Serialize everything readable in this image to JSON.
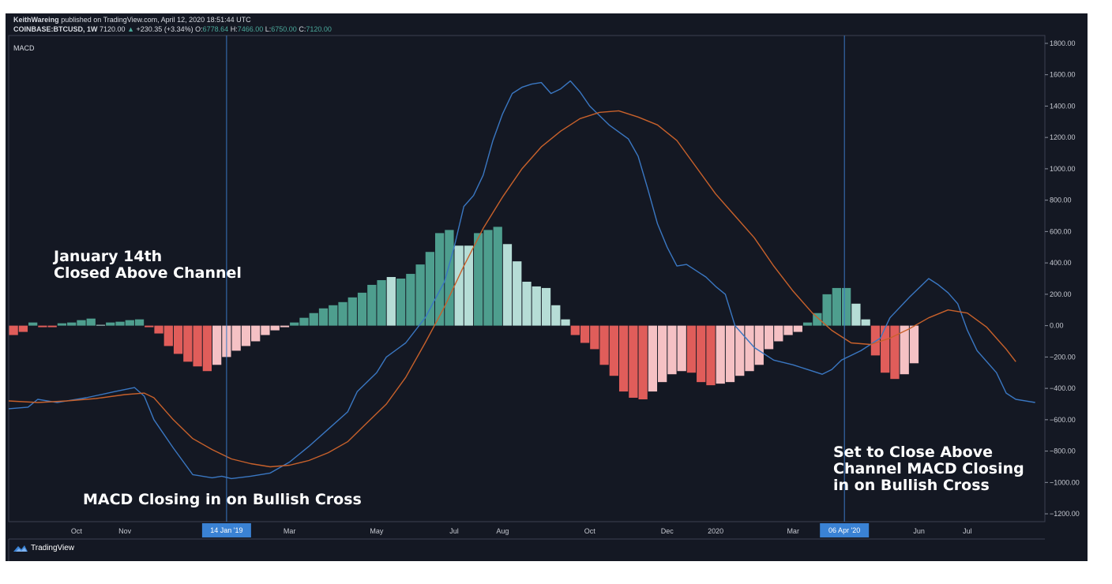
{
  "header": {
    "author": "KeithWareing",
    "published": "published on TradingView.com, April 12, 2020 18:51:44 UTC",
    "symbol": "COINBASE:BTCUSD, 1W",
    "last": "7120.00",
    "change_arrow": "▲",
    "change": "+230.35 (+3.34%)",
    "o_label": "O:",
    "o": "6778.64",
    "h_label": "H:",
    "h": "7466.00",
    "l_label": "L:",
    "l": "6750.00",
    "c_label": "C:",
    "c": "7120.00"
  },
  "indicator_label": "MACD",
  "annotations": {
    "jan14_line1": "January 14th",
    "jan14_line2": "Closed Above Channel",
    "closing_in": "MACD Closing in on Bullish Cross",
    "set_line1": "Set to Close Above",
    "set_line2": "Channel MACD Closing",
    "set_line3": "in on Bullish Cross"
  },
  "branding": {
    "name": "TradingView",
    "icon": "tradingview-logo-icon"
  },
  "colors": {
    "background": "#141823",
    "macd_line": "#3a77c2",
    "signal_line": "#c8612b",
    "hist_up_strong": "#4e9e8e",
    "hist_up_weak": "#b6ddd6",
    "hist_down_strong": "#e05d5a",
    "hist_down_weak": "#f5c1c4",
    "marker": "#3a77c2",
    "marker_label_bg": "#3a82d4"
  },
  "chart_data": {
    "type": "bar",
    "ylim": [
      -1250,
      1850
    ],
    "y_ticks": [
      1800,
      1600,
      1400,
      1200,
      1000,
      800,
      600,
      400,
      200,
      0,
      -200,
      -400,
      -600,
      -800,
      -1000,
      -1200
    ],
    "y_tick_labels": [
      "1800.00",
      "1600.00",
      "1400.00",
      "1200.00",
      "1000.00",
      "800.00",
      "600.00",
      "400.00",
      "200.00",
      "0.00",
      "−200.00",
      "−400.00",
      "−600.00",
      "−800.00",
      "−1000.00",
      "−1200.00"
    ],
    "x_range": [
      0,
      107
    ],
    "x_ticks": [
      {
        "label": "Oct",
        "x": 7
      },
      {
        "label": "Nov",
        "x": 12
      },
      {
        "label": "Mar",
        "x": 29
      },
      {
        "label": "May",
        "x": 38
      },
      {
        "label": "Jul",
        "x": 46
      },
      {
        "label": "Aug",
        "x": 51
      },
      {
        "label": "Oct",
        "x": 60
      },
      {
        "label": "Dec",
        "x": 68
      },
      {
        "label": "2020",
        "x": 73
      },
      {
        "label": "Mar",
        "x": 81
      },
      {
        "label": "Jun",
        "x": 94
      },
      {
        "label": "Jul",
        "x": 99
      }
    ],
    "markers": [
      {
        "label": "14 Jan '19",
        "x": 22.5
      },
      {
        "label": "06 Apr '20",
        "x": 86.3
      }
    ],
    "histogram": [
      -60,
      -40,
      20,
      -10,
      -10,
      15,
      20,
      35,
      45,
      5,
      20,
      25,
      35,
      40,
      -10,
      -50,
      -130,
      -180,
      -230,
      -260,
      -290,
      -250,
      -200,
      -160,
      -130,
      -100,
      -60,
      -30,
      -10,
      20,
      50,
      80,
      110,
      130,
      150,
      180,
      210,
      260,
      290,
      310,
      300,
      330,
      390,
      470,
      590,
      610,
      510,
      510,
      590,
      610,
      630,
      520,
      410,
      280,
      250,
      240,
      130,
      40,
      -60,
      -110,
      -150,
      -250,
      -320,
      -420,
      -460,
      -470,
      -420,
      -360,
      -310,
      -290,
      -300,
      -360,
      -380,
      -370,
      -360,
      -320,
      -290,
      -250,
      -150,
      -100,
      -60,
      -40,
      20,
      80,
      200,
      240,
      240,
      140,
      40,
      -190,
      -300,
      -340,
      -310,
      -240
    ],
    "hist_style": [
      "ds",
      "ds",
      "us",
      "ds",
      "ds",
      "us",
      "us",
      "us",
      "us",
      "uw",
      "us",
      "us",
      "us",
      "us",
      "ds",
      "ds",
      "ds",
      "ds",
      "ds",
      "ds",
      "ds",
      "dw",
      "dw",
      "dw",
      "dw",
      "dw",
      "dw",
      "dw",
      "dw",
      "us",
      "us",
      "us",
      "us",
      "us",
      "us",
      "us",
      "us",
      "us",
      "us",
      "uw",
      "us",
      "us",
      "us",
      "us",
      "us",
      "us",
      "uw",
      "uw",
      "us",
      "us",
      "us",
      "uw",
      "uw",
      "uw",
      "uw",
      "uw",
      "uw",
      "uw",
      "ds",
      "ds",
      "ds",
      "ds",
      "ds",
      "ds",
      "ds",
      "ds",
      "dw",
      "dw",
      "dw",
      "dw",
      "ds",
      "ds",
      "ds",
      "dw",
      "dw",
      "dw",
      "dw",
      "dw",
      "dw",
      "dw",
      "dw",
      "dw",
      "us",
      "us",
      "us",
      "us",
      "us",
      "uw",
      "uw",
      "ds",
      "ds",
      "ds",
      "dw",
      "dw"
    ],
    "series": [
      {
        "values": [
          [
            0,
            -530
          ],
          [
            2,
            -520
          ],
          [
            3,
            -470
          ],
          [
            5,
            -490
          ],
          [
            8,
            -460
          ],
          [
            11,
            -420
          ],
          [
            13,
            -395
          ],
          [
            14,
            -450
          ],
          [
            15,
            -600
          ],
          [
            17,
            -780
          ],
          [
            19,
            -950
          ],
          [
            21,
            -970
          ],
          [
            22,
            -960
          ],
          [
            23,
            -975
          ],
          [
            25,
            -960
          ],
          [
            27,
            -940
          ],
          [
            29,
            -870
          ],
          [
            31,
            -770
          ],
          [
            33,
            -660
          ],
          [
            35,
            -550
          ],
          [
            36,
            -420
          ],
          [
            38,
            -300
          ],
          [
            39,
            -200
          ],
          [
            41,
            -110
          ],
          [
            43,
            50
          ],
          [
            45,
            280
          ],
          [
            46,
            500
          ],
          [
            47,
            760
          ],
          [
            48,
            830
          ],
          [
            49,
            960
          ],
          [
            50,
            1180
          ],
          [
            51,
            1350
          ],
          [
            52,
            1480
          ],
          [
            53,
            1520
          ],
          [
            54,
            1540
          ],
          [
            55,
            1550
          ],
          [
            56,
            1480
          ],
          [
            57,
            1510
          ],
          [
            58,
            1560
          ],
          [
            59,
            1490
          ],
          [
            60,
            1400
          ],
          [
            62,
            1280
          ],
          [
            64,
            1190
          ],
          [
            65,
            1080
          ],
          [
            66,
            870
          ],
          [
            67,
            650
          ],
          [
            68,
            500
          ],
          [
            69,
            380
          ],
          [
            70,
            390
          ],
          [
            71,
            350
          ],
          [
            72,
            310
          ],
          [
            73,
            250
          ],
          [
            74,
            200
          ],
          [
            75,
            0
          ],
          [
            77,
            -140
          ],
          [
            79,
            -220
          ],
          [
            81,
            -250
          ],
          [
            83,
            -290
          ],
          [
            84,
            -310
          ],
          [
            85,
            -280
          ],
          [
            86,
            -220
          ],
          [
            88,
            -160
          ],
          [
            90,
            -80
          ],
          [
            91,
            50
          ],
          [
            93,
            180
          ],
          [
            95,
            300
          ],
          [
            96,
            260
          ],
          [
            97,
            210
          ],
          [
            98,
            140
          ],
          [
            99,
            -30
          ],
          [
            100,
            -160
          ],
          [
            102,
            -300
          ],
          [
            103,
            -430
          ],
          [
            104,
            -470
          ],
          [
            106,
            -490
          ]
        ]
      },
      {
        "values": [
          [
            0,
            -480
          ],
          [
            3,
            -490
          ],
          [
            6,
            -480
          ],
          [
            9,
            -465
          ],
          [
            12,
            -440
          ],
          [
            14,
            -430
          ],
          [
            15,
            -460
          ],
          [
            17,
            -600
          ],
          [
            19,
            -720
          ],
          [
            21,
            -790
          ],
          [
            23,
            -850
          ],
          [
            25,
            -880
          ],
          [
            27,
            -900
          ],
          [
            29,
            -890
          ],
          [
            31,
            -860
          ],
          [
            33,
            -810
          ],
          [
            35,
            -740
          ],
          [
            37,
            -620
          ],
          [
            39,
            -500
          ],
          [
            41,
            -330
          ],
          [
            43,
            -110
          ],
          [
            45,
            120
          ],
          [
            47,
            380
          ],
          [
            49,
            620
          ],
          [
            51,
            820
          ],
          [
            53,
            1000
          ],
          [
            55,
            1140
          ],
          [
            57,
            1240
          ],
          [
            59,
            1320
          ],
          [
            61,
            1360
          ],
          [
            63,
            1370
          ],
          [
            65,
            1330
          ],
          [
            67,
            1280
          ],
          [
            69,
            1180
          ],
          [
            71,
            1010
          ],
          [
            73,
            840
          ],
          [
            75,
            700
          ],
          [
            77,
            560
          ],
          [
            79,
            380
          ],
          [
            81,
            220
          ],
          [
            83,
            80
          ],
          [
            85,
            -30
          ],
          [
            87,
            -110
          ],
          [
            89,
            -120
          ],
          [
            91,
            -80
          ],
          [
            93,
            -20
          ],
          [
            95,
            50
          ],
          [
            97,
            100
          ],
          [
            99,
            80
          ],
          [
            101,
            -10
          ],
          [
            103,
            -150
          ],
          [
            104,
            -230
          ]
        ]
      }
    ]
  }
}
